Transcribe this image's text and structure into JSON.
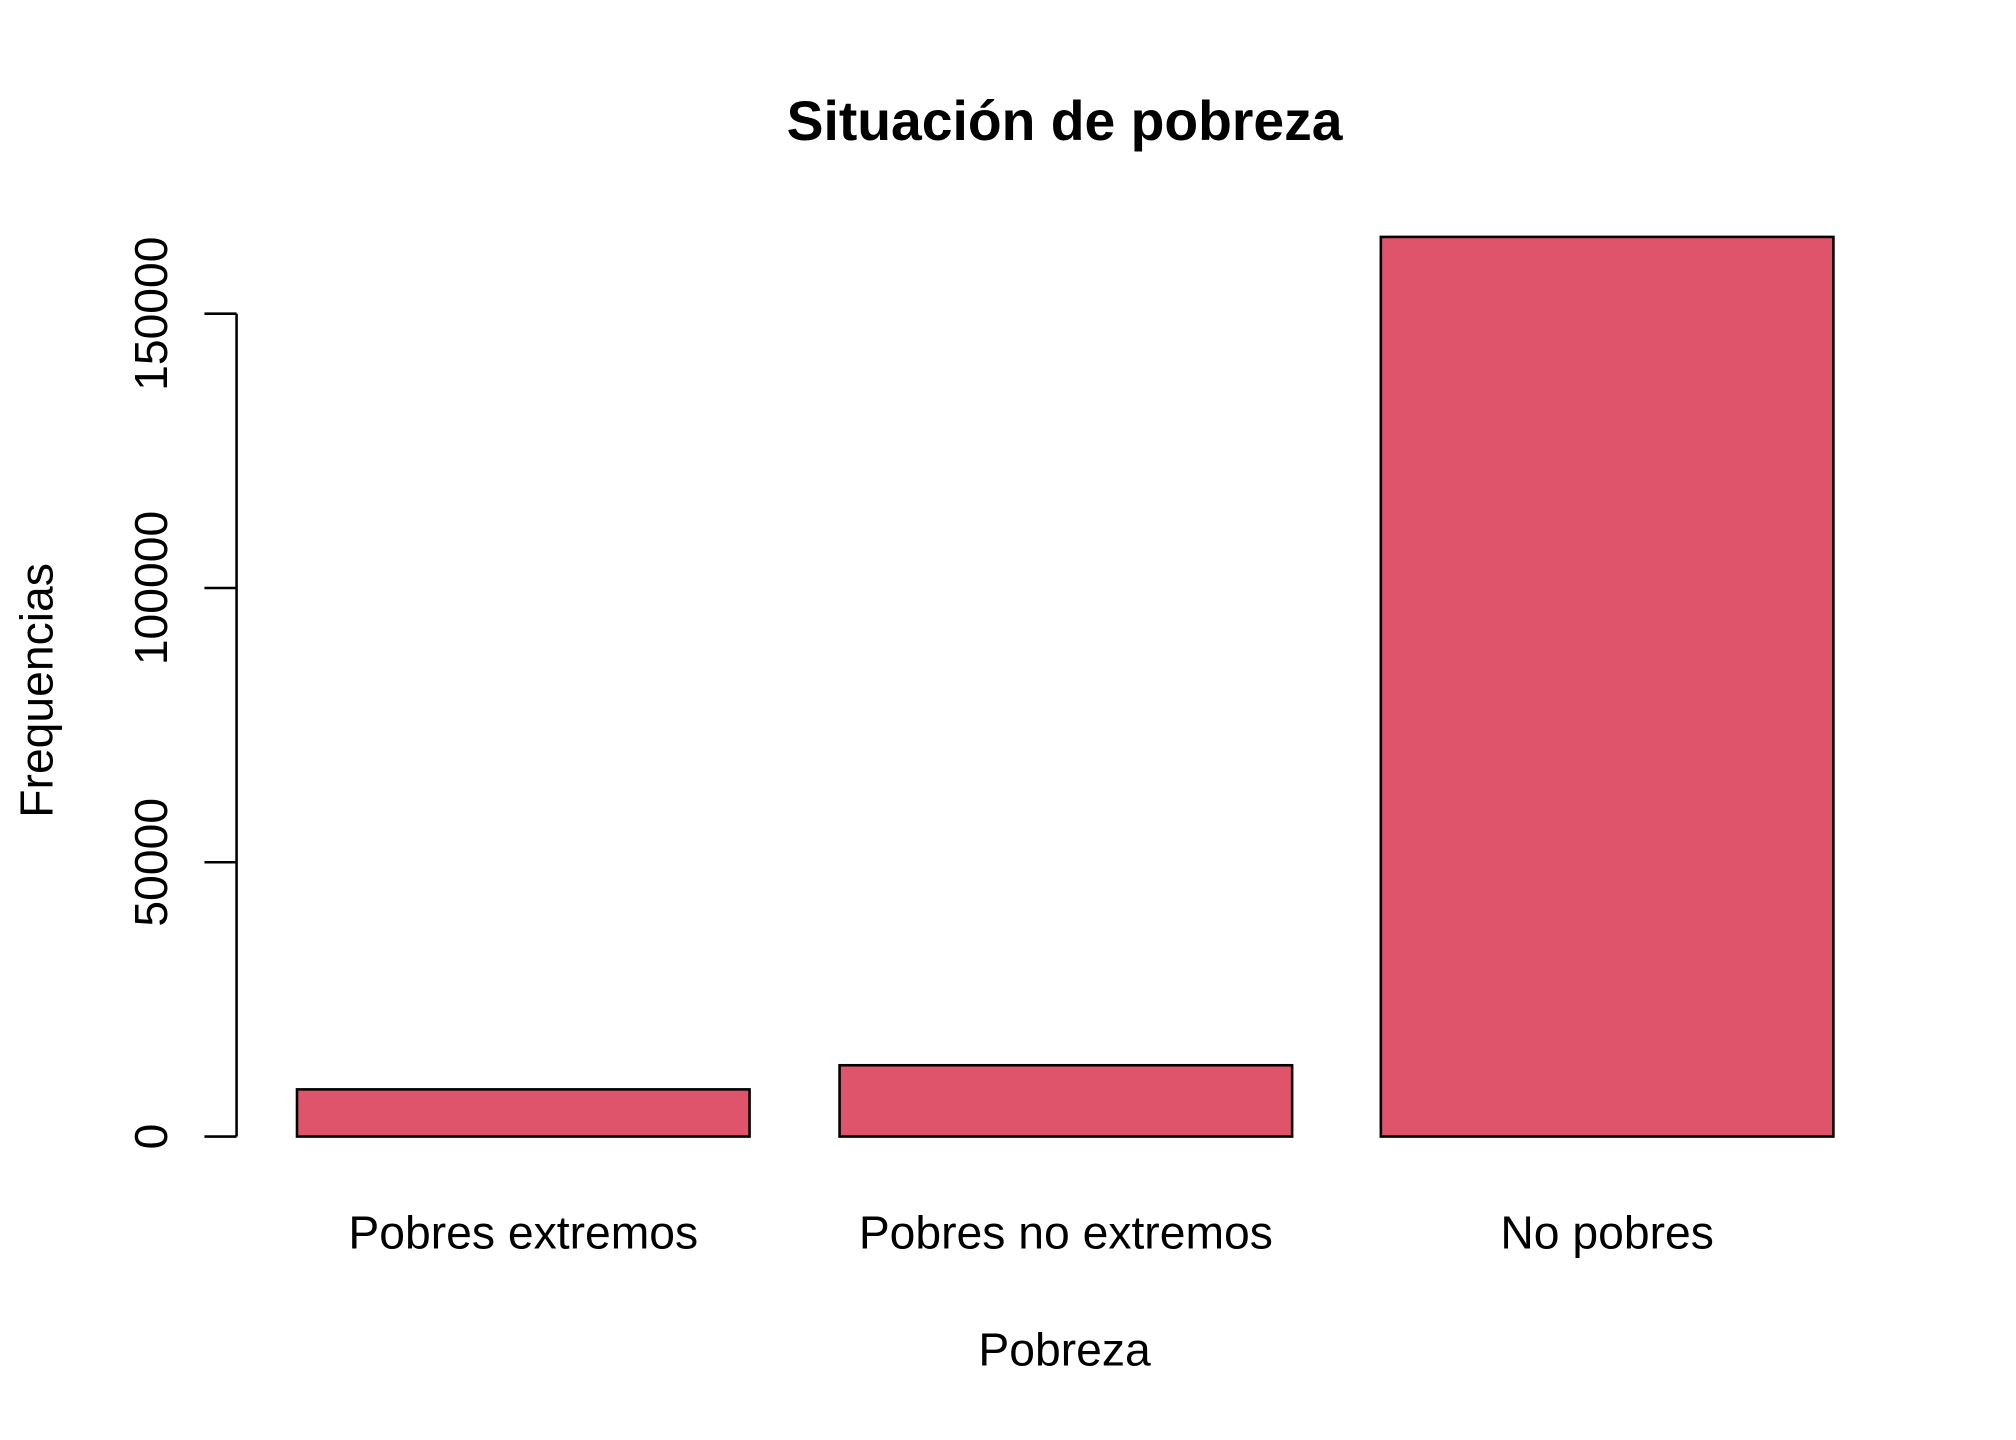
{
  "chart_data": {
    "type": "bar",
    "title": "Situación de pobreza",
    "xlabel": "Pobreza",
    "ylabel": "Frequencias",
    "categories": [
      "Pobres extremos",
      "Pobres no extremos",
      "No pobres"
    ],
    "values": [
      8600,
      13000,
      164000
    ],
    "ylim": [
      0,
      150000
    ],
    "yticks": [
      {
        "value": 0,
        "label": "0"
      },
      {
        "value": 50000,
        "label": "50000"
      },
      {
        "value": 100000,
        "label": "100000"
      },
      {
        "value": 150000,
        "label": "150000"
      }
    ],
    "bar_color": "#DF536B",
    "edge_color": "#000000",
    "grid": false,
    "legend": "none"
  }
}
